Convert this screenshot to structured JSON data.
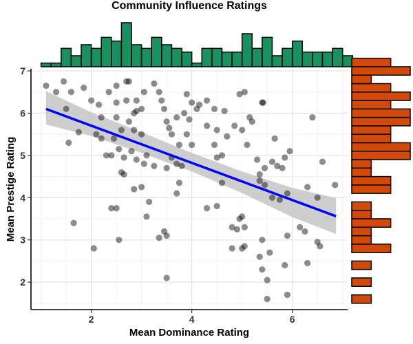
{
  "chart_data": {
    "type": "scatter",
    "title": "Community Influence Ratings",
    "xlabel": "Mean Dominance Rating",
    "ylabel": "Mean Prestige Rating",
    "xlim": [
      0.8,
      7.1
    ],
    "ylim": [
      1.35,
      7.05
    ],
    "xticks": [
      2,
      4,
      6
    ],
    "yticks": [
      2,
      3,
      4,
      5,
      6,
      7
    ],
    "grid": true,
    "colors": {
      "points": "#000000",
      "regression_line": "#0000ff",
      "confidence_band": "#bebebe",
      "x_histogram": "#1a9060",
      "y_histogram": "#d24a0a"
    },
    "points": [
      [
        1.1,
        6.65
      ],
      [
        1.3,
        6.5
      ],
      [
        1.45,
        6.75
      ],
      [
        1.6,
        6.5
      ],
      [
        1.85,
        6.6
      ],
      [
        1.5,
        6.1
      ],
      [
        1.75,
        5.55
      ],
      [
        1.55,
        5.3
      ],
      [
        1.65,
        3.4
      ],
      [
        2.05,
        2.8
      ],
      [
        2.0,
        6.3
      ],
      [
        2.15,
        6.2
      ],
      [
        2.35,
        6.5
      ],
      [
        2.5,
        6.65
      ],
      [
        2.7,
        6.75
      ],
      [
        2.75,
        6.75
      ],
      [
        2.9,
        6.3
      ],
      [
        3.05,
        6.5
      ],
      [
        3.25,
        6.7
      ],
      [
        3.35,
        6.5
      ],
      [
        2.2,
        5.9
      ],
      [
        2.5,
        6.25
      ],
      [
        2.7,
        6.3
      ],
      [
        2.85,
        6.0
      ],
      [
        2.9,
        6.05
      ],
      [
        3.0,
        6.1
      ],
      [
        2.1,
        5.5
      ],
      [
        2.2,
        5.4
      ],
      [
        2.45,
        5.4
      ],
      [
        2.5,
        5.9
      ],
      [
        2.6,
        5.6
      ],
      [
        2.75,
        5.8
      ],
      [
        2.85,
        5.6
      ],
      [
        3.0,
        5.5
      ],
      [
        2.4,
        5.0
      ],
      [
        2.3,
        5.0
      ],
      [
        2.55,
        5.15
      ],
      [
        2.65,
        4.95
      ],
      [
        2.8,
        5.1
      ],
      [
        2.9,
        4.9
      ],
      [
        3.1,
        5.0
      ],
      [
        3.05,
        4.8
      ],
      [
        3.25,
        4.75
      ],
      [
        2.6,
        4.6
      ],
      [
        2.65,
        4.55
      ],
      [
        2.85,
        4.2
      ],
      [
        3.0,
        4.25
      ],
      [
        3.15,
        3.9
      ],
      [
        3.1,
        3.55
      ],
      [
        2.4,
        3.75
      ],
      [
        2.5,
        3.75
      ],
      [
        2.55,
        3.0
      ],
      [
        3.35,
        3.05
      ],
      [
        3.45,
        3.2
      ],
      [
        3.5,
        3.1
      ],
      [
        3.4,
        6.3
      ],
      [
        3.45,
        6.1
      ],
      [
        3.5,
        5.8
      ],
      [
        3.55,
        5.65
      ],
      [
        3.7,
        5.9
      ],
      [
        3.85,
        6.0
      ],
      [
        3.95,
        5.85
      ],
      [
        3.9,
        6.45
      ],
      [
        4.0,
        6.25
      ],
      [
        4.1,
        6.1
      ],
      [
        4.15,
        6.2
      ],
      [
        3.6,
        5.5
      ],
      [
        3.75,
        5.25
      ],
      [
        3.9,
        5.5
      ],
      [
        4.0,
        5.25
      ],
      [
        3.5,
        4.7
      ],
      [
        3.6,
        4.95
      ],
      [
        3.7,
        4.8
      ],
      [
        3.8,
        4.75
      ],
      [
        3.7,
        4.1
      ],
      [
        3.75,
        4.35
      ],
      [
        4.3,
        6.3
      ],
      [
        4.45,
        6.1
      ],
      [
        4.3,
        5.7
      ],
      [
        4.5,
        5.6
      ],
      [
        4.65,
        6.05
      ],
      [
        4.45,
        5.25
      ],
      [
        4.5,
        4.95
      ],
      [
        4.6,
        5.0
      ],
      [
        4.7,
        5.45
      ],
      [
        4.85,
        5.7
      ],
      [
        4.95,
        6.45
      ],
      [
        5.05,
        6.5
      ],
      [
        5.15,
        5.9
      ],
      [
        5.0,
        5.6
      ],
      [
        5.2,
        5.8
      ],
      [
        5.4,
        6.25
      ],
      [
        5.42,
        6.25
      ],
      [
        5.1,
        5.25
      ],
      [
        5.3,
        4.9
      ],
      [
        5.35,
        4.55
      ],
      [
        5.45,
        4.7
      ],
      [
        5.6,
        4.85
      ],
      [
        5.7,
        4.75
      ],
      [
        5.8,
        4.7
      ],
      [
        5.85,
        4.95
      ],
      [
        5.95,
        5.1
      ],
      [
        5.65,
        5.4
      ],
      [
        5.35,
        4.4
      ],
      [
        5.45,
        4.3
      ],
      [
        5.6,
        4.0
      ],
      [
        5.75,
        3.95
      ],
      [
        5.9,
        4.1
      ],
      [
        6.3,
        4.25
      ],
      [
        6.5,
        4.0
      ],
      [
        6.6,
        4.85
      ],
      [
        6.85,
        4.3
      ],
      [
        6.4,
        5.9
      ],
      [
        4.3,
        3.75
      ],
      [
        4.6,
        4.35
      ],
      [
        4.8,
        3.3
      ],
      [
        4.9,
        3.25
      ],
      [
        4.95,
        3.5
      ],
      [
        5.0,
        3.55
      ],
      [
        5.05,
        3.3
      ],
      [
        5.05,
        2.85
      ],
      [
        5.0,
        2.8
      ],
      [
        5.35,
        2.6
      ],
      [
        5.55,
        2.7
      ],
      [
        5.85,
        2.4
      ],
      [
        6.25,
        3.2
      ],
      [
        6.3,
        2.45
      ],
      [
        6.5,
        2.95
      ],
      [
        6.55,
        2.85
      ],
      [
        6.15,
        3.3
      ],
      [
        5.9,
        3.1
      ],
      [
        5.4,
        3.0
      ],
      [
        5.4,
        2.3
      ],
      [
        5.5,
        2.05
      ],
      [
        5.9,
        1.7
      ],
      [
        5.5,
        1.6
      ],
      [
        4.8,
        2.8
      ],
      [
        4.5,
        3.8
      ],
      [
        3.5,
        2.1
      ]
    ],
    "regression_line": {
      "x": [
        1.1,
        6.87
      ],
      "y": [
        6.1,
        3.56
      ]
    },
    "confidence_band": {
      "x": [
        1.1,
        2.0,
        3.0,
        4.0,
        5.0,
        6.0,
        6.87
      ],
      "upper": [
        6.52,
        6.02,
        5.55,
        5.06,
        4.62,
        4.23,
        3.99
      ],
      "lower": [
        5.73,
        5.46,
        5.06,
        4.62,
        4.11,
        3.54,
        3.14
      ]
    },
    "x_histogram": {
      "bin_start": 1.0,
      "bin_width": 0.2,
      "counts": [
        1,
        1,
        5,
        3,
        6,
        5,
        8,
        7,
        12,
        6,
        5,
        8,
        6,
        5,
        4,
        1,
        5,
        5,
        4,
        4,
        9,
        5,
        8,
        3,
        5,
        7,
        4,
        4,
        4,
        5,
        3,
        1
      ]
    },
    "y_histogram": {
      "bin_start": 1.5,
      "bin_width": 0.2,
      "counts": [
        1,
        0,
        1,
        0,
        1,
        0,
        2,
        1,
        1,
        2,
        1,
        1,
        0,
        2,
        2,
        1,
        1,
        3,
        3,
        2,
        2,
        3,
        3,
        2,
        3,
        2,
        1,
        3,
        2
      ]
    }
  }
}
